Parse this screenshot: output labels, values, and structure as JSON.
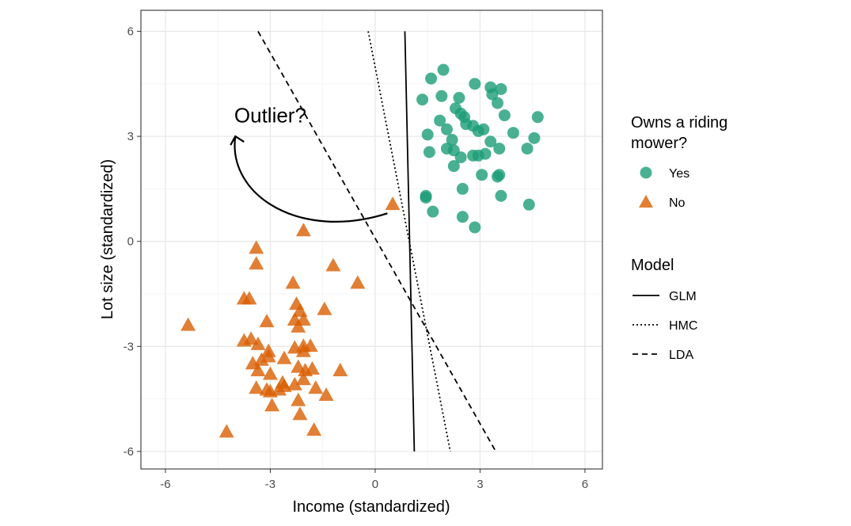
{
  "chart_data": {
    "type": "scatter",
    "xlabel": "Income (standardized)",
    "ylabel": "Lot size (standardized)",
    "xlim": [
      -6.7,
      6.5
    ],
    "ylim": [
      -6.5,
      6.6
    ],
    "xticks": [
      -6,
      -3,
      0,
      3,
      6
    ],
    "yticks": [
      -6,
      -3,
      0,
      3,
      6
    ],
    "tick_labels_x": [
      "-6",
      "-3",
      "0",
      "3",
      "6"
    ],
    "tick_labels_y": [
      "-6",
      "-3",
      "0",
      "3",
      "6"
    ],
    "grid": true,
    "series": [
      {
        "name": "Yes",
        "marker": "circle",
        "color": "#1b9e77",
        "points": [
          [
            1.95,
            4.9
          ],
          [
            1.6,
            4.65
          ],
          [
            1.35,
            4.05
          ],
          [
            1.9,
            4.15
          ],
          [
            2.4,
            4.1
          ],
          [
            2.85,
            4.5
          ],
          [
            3.3,
            4.4
          ],
          [
            3.6,
            4.35
          ],
          [
            3.35,
            4.2
          ],
          [
            3.5,
            3.95
          ],
          [
            2.3,
            3.8
          ],
          [
            2.45,
            3.65
          ],
          [
            2.55,
            3.55
          ],
          [
            2.6,
            3.35
          ],
          [
            2.8,
            3.3
          ],
          [
            2.95,
            3.15
          ],
          [
            3.1,
            3.2
          ],
          [
            1.85,
            3.45
          ],
          [
            2.05,
            3.2
          ],
          [
            1.5,
            3.05
          ],
          [
            2.2,
            2.9
          ],
          [
            2.05,
            2.65
          ],
          [
            2.25,
            2.6
          ],
          [
            2.45,
            2.4
          ],
          [
            2.8,
            2.45
          ],
          [
            2.95,
            2.45
          ],
          [
            3.3,
            2.85
          ],
          [
            3.55,
            2.65
          ],
          [
            3.15,
            2.5
          ],
          [
            3.7,
            3.6
          ],
          [
            3.95,
            3.1
          ],
          [
            4.35,
            2.65
          ],
          [
            4.55,
            2.95
          ],
          [
            4.65,
            3.55
          ],
          [
            2.25,
            2.15
          ],
          [
            1.55,
            2.55
          ],
          [
            3.05,
            1.9
          ],
          [
            3.55,
            1.9
          ],
          [
            3.5,
            1.85
          ],
          [
            2.5,
            1.5
          ],
          [
            1.45,
            1.25
          ],
          [
            1.45,
            1.3
          ],
          [
            3.6,
            1.3
          ],
          [
            4.4,
            1.05
          ],
          [
            1.65,
            0.85
          ],
          [
            2.5,
            0.7
          ],
          [
            2.85,
            0.4
          ]
        ]
      },
      {
        "name": "No",
        "marker": "triangle",
        "color": "#d95f02",
        "points": [
          [
            0.5,
            1.05
          ],
          [
            -2.05,
            0.3
          ],
          [
            -3.4,
            -0.2
          ],
          [
            -3.4,
            -0.65
          ],
          [
            -1.2,
            -0.7
          ],
          [
            -0.5,
            -1.2
          ],
          [
            -2.35,
            -1.2
          ],
          [
            -3.75,
            -1.65
          ],
          [
            -3.6,
            -1.65
          ],
          [
            -2.25,
            -1.8
          ],
          [
            -1.45,
            -1.95
          ],
          [
            -2.15,
            -2.0
          ],
          [
            -2.3,
            -2.25
          ],
          [
            -2.05,
            -2.25
          ],
          [
            -3.1,
            -2.3
          ],
          [
            -5.35,
            -2.4
          ],
          [
            -2.2,
            -2.45
          ],
          [
            -3.75,
            -2.85
          ],
          [
            -3.55,
            -2.8
          ],
          [
            -3.35,
            -2.95
          ],
          [
            -2.3,
            -3.05
          ],
          [
            -2.05,
            -3.0
          ],
          [
            -1.85,
            -3.0
          ],
          [
            -3.05,
            -3.15
          ],
          [
            -3.05,
            -3.3
          ],
          [
            -2.05,
            -3.15
          ],
          [
            -2.6,
            -3.35
          ],
          [
            -3.25,
            -3.4
          ],
          [
            -3.5,
            -3.5
          ],
          [
            -3.35,
            -3.7
          ],
          [
            -2.2,
            -3.6
          ],
          [
            -2.0,
            -3.7
          ],
          [
            -1.8,
            -3.65
          ],
          [
            -1.0,
            -3.7
          ],
          [
            -3.0,
            -3.8
          ],
          [
            -2.05,
            -3.95
          ],
          [
            -2.65,
            -4.05
          ],
          [
            -2.3,
            -4.1
          ],
          [
            -2.6,
            -4.15
          ],
          [
            -2.75,
            -4.25
          ],
          [
            -3.0,
            -4.3
          ],
          [
            -3.1,
            -4.25
          ],
          [
            -3.4,
            -4.2
          ],
          [
            -1.7,
            -4.2
          ],
          [
            -1.4,
            -4.4
          ],
          [
            -2.2,
            -4.55
          ],
          [
            -2.95,
            -4.7
          ],
          [
            -2.15,
            -4.95
          ],
          [
            -1.75,
            -5.4
          ],
          [
            -4.25,
            -5.45
          ]
        ]
      }
    ],
    "lines": [
      {
        "name": "GLM",
        "style": "solid",
        "points": [
          [
            0.85,
            6.0
          ],
          [
            1.12,
            -6.0
          ]
        ]
      },
      {
        "name": "HMC",
        "style": "dotted",
        "points": [
          [
            -0.2,
            6.0
          ],
          [
            2.15,
            -6.0
          ]
        ]
      },
      {
        "name": "LDA",
        "style": "dashed",
        "points": [
          [
            -3.35,
            6.0
          ],
          [
            3.45,
            -6.0
          ]
        ]
      }
    ],
    "annotations": [
      {
        "text": "Outlier?",
        "x": -3.0,
        "y": 3.4,
        "arrow_from": [
          0.35,
          0.8
        ],
        "arrow_to": [
          -4.0,
          3.0
        ]
      }
    ],
    "legends": [
      {
        "title": "Owns a riding mower?",
        "title_lines": [
          "Owns a riding",
          "mower?"
        ],
        "entries": [
          {
            "label": "Yes",
            "marker": "circle",
            "color": "#1b9e77"
          },
          {
            "label": "No",
            "marker": "triangle",
            "color": "#d95f02"
          }
        ]
      },
      {
        "title": "Model",
        "entries": [
          {
            "label": "GLM",
            "style": "solid"
          },
          {
            "label": "HMC",
            "style": "dotted"
          },
          {
            "label": "LDA",
            "style": "dashed"
          }
        ]
      }
    ],
    "legend_position": "right"
  }
}
